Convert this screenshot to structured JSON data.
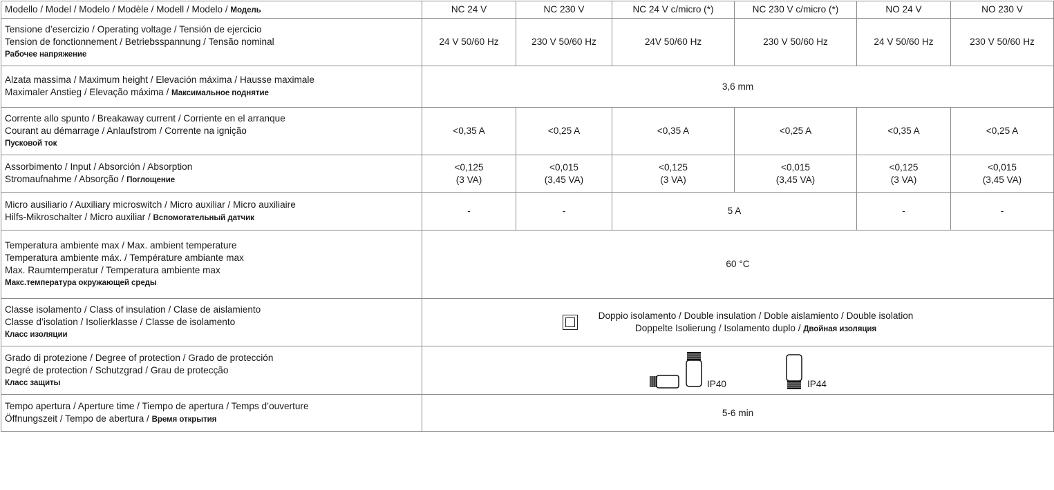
{
  "header": {
    "label": "Modello / Model / Modelo / Modèle / Modell / Modelo / ",
    "label_ru": "Модель",
    "models": [
      "NC 24 V",
      "NC 230 V",
      "NC 24 V c/micro (*)",
      "NC 230 V c/micro (*)",
      "NO 24 V",
      "NO 230 V"
    ]
  },
  "rows": {
    "voltage": {
      "l1": "Tensione d’esercizio / Operating voltage / Tensión de ejercicio",
      "l2": "Tension de fonctionnement / Betriebsspannung / Tensão nominal",
      "ru": "Рабочее напряжение",
      "values": [
        "24 V 50/60 Hz",
        "230 V 50/60 Hz",
        "24V 50/60 Hz",
        "230 V 50/60 Hz",
        "24 V 50/60 Hz",
        "230 V 50/60 Hz"
      ]
    },
    "height": {
      "l1": "Alzata massima / Maximum height / Elevación máxima / Hausse maximale",
      "l2": "Maximaler Anstieg / Elevação máxima / ",
      "ru": "Максимальное поднятие",
      "value": "3,6 mm"
    },
    "current": {
      "l1": "Corrente allo spunto / Breakaway current / Corriente en el arranque",
      "l2": "Courant au démarrage / Anlaufstrom / Corrente na ignição",
      "ru": "Пусковой ток",
      "values": [
        "<0,35 A",
        "<0,25 A",
        "<0,35 A",
        "<0,25 A",
        "<0,35 A",
        "<0,25 A"
      ]
    },
    "input": {
      "l1": "Assorbimento / Input / Absorción / Absorption",
      "l2": "Stromaufnahme / Absorção / ",
      "ru": "Поглощение",
      "values": [
        {
          "a": "<0,125",
          "b": "(3 VA)"
        },
        {
          "a": "<0,015",
          "b": "(3,45 VA)"
        },
        {
          "a": "<0,125",
          "b": "(3 VA)"
        },
        {
          "a": "<0,015",
          "b": "(3,45 VA)"
        },
        {
          "a": "<0,125",
          "b": "(3 VA)"
        },
        {
          "a": "<0,015",
          "b": "(3,45 VA)"
        }
      ]
    },
    "micro": {
      "l1": "Micro ausiliario / Auxiliary microswitch / Micro auxiliar / Micro auxiliaire",
      "l2": "Hilfs-Mikroschalter / Micro auxiliar / ",
      "ru": "Вспомогательный датчик",
      "v1": "-",
      "v2": "-",
      "merged": "5 A",
      "v5": "-",
      "v6": "-"
    },
    "temp": {
      "l1": "Temperatura ambiente max / Max. ambient temperature",
      "l2": "Temperatura ambiente máx. / Température ambiante max",
      "l3": "Max. Raumtemperatur / Temperatura ambiente max",
      "ru": "Макс.температура окружающей среды",
      "value": "60 °C"
    },
    "insulation": {
      "l1": "Classe isolamento / Class of insulation / Clase de aislamiento",
      "l2": "Classe d’isolation / Isolierklasse / Classe de isolamento",
      "ru": "Класс изоляции",
      "v1": "Doppio isolamento / Double insulation / Doble aislamiento / Double isolation",
      "v2": "Doppelte Isolierung / Isolamento duplo / ",
      "v2_ru": "Двойная изоляция"
    },
    "protection": {
      "l1": "Grado di protezione / Degree of protection / Grado de protección",
      "l2": "Degré de protection / Schutzgrad / Grau de protecção",
      "ru": "Класс защиты",
      "ip1": "IP40",
      "ip2": "IP44"
    },
    "aperture": {
      "l1": "Tempo apertura / Aperture time / Tiempo de apertura / Temps d’ouverture",
      "l2": "Öffnungszeit / Tempo de abertura / ",
      "ru": "Время открытия",
      "value": "5-6 min"
    }
  }
}
